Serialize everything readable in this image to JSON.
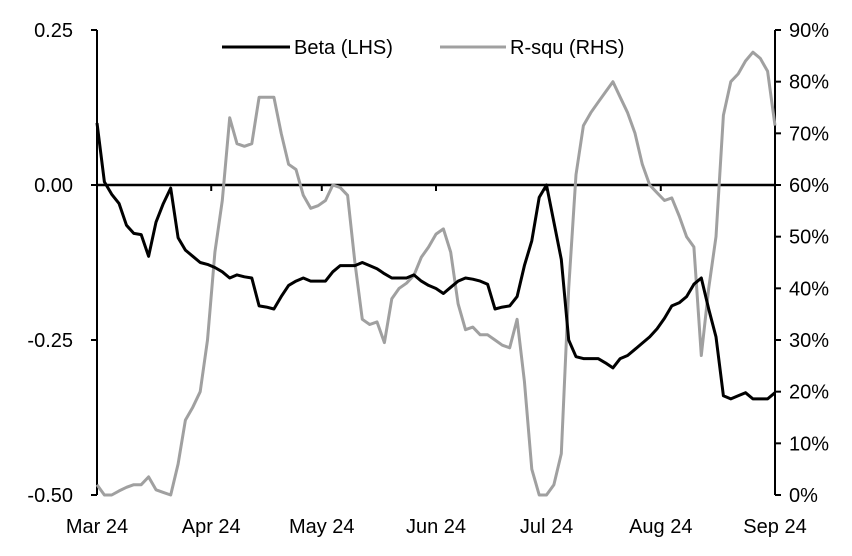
{
  "chart_data": {
    "type": "line",
    "title": "",
    "xlabel": "",
    "ylabel_left": "",
    "ylabel_right": "",
    "x_tick_labels": [
      "Mar 24",
      "Apr 24",
      "May 24",
      "Jun 24",
      "Jul 24",
      "Aug 24",
      "Sep 24"
    ],
    "x_tick_dates": [
      "2024-03-01",
      "2024-04-01",
      "2024-05-01",
      "2024-06-01",
      "2024-07-01",
      "2024-08-01",
      "2024-09-01"
    ],
    "x_range": [
      "2024-03-01",
      "2024-09-01"
    ],
    "y_left": {
      "range": [
        -0.5,
        0.25
      ],
      "ticks": [
        0.25,
        0.0,
        -0.25,
        -0.5
      ],
      "tick_labels": [
        "0.25",
        "0.00",
        "-0.25",
        "-0.50"
      ]
    },
    "y_right": {
      "range": [
        0,
        90
      ],
      "ticks": [
        0,
        10,
        20,
        30,
        40,
        50,
        60,
        70,
        80,
        90
      ],
      "tick_labels": [
        "0%",
        "10%",
        "20%",
        "30%",
        "40%",
        "50%",
        "60%",
        "70%",
        "80%",
        "90%"
      ]
    },
    "grid": false,
    "legend_position": "top-center",
    "x": [
      "2024-03-01",
      "2024-03-03",
      "2024-03-05",
      "2024-03-07",
      "2024-03-09",
      "2024-03-11",
      "2024-03-13",
      "2024-03-15",
      "2024-03-17",
      "2024-03-19",
      "2024-03-21",
      "2024-03-23",
      "2024-03-25",
      "2024-03-27",
      "2024-03-29",
      "2024-03-31",
      "2024-04-02",
      "2024-04-04",
      "2024-04-06",
      "2024-04-08",
      "2024-04-10",
      "2024-04-12",
      "2024-04-14",
      "2024-04-16",
      "2024-04-18",
      "2024-04-20",
      "2024-04-22",
      "2024-04-24",
      "2024-04-26",
      "2024-04-28",
      "2024-04-30",
      "2024-05-02",
      "2024-05-04",
      "2024-05-06",
      "2024-05-08",
      "2024-05-10",
      "2024-05-12",
      "2024-05-14",
      "2024-05-16",
      "2024-05-18",
      "2024-05-20",
      "2024-05-22",
      "2024-05-24",
      "2024-05-26",
      "2024-05-28",
      "2024-05-30",
      "2024-06-01",
      "2024-06-03",
      "2024-06-05",
      "2024-06-07",
      "2024-06-09",
      "2024-06-11",
      "2024-06-13",
      "2024-06-15",
      "2024-06-17",
      "2024-06-19",
      "2024-06-21",
      "2024-06-23",
      "2024-06-25",
      "2024-06-27",
      "2024-06-29",
      "2024-07-01",
      "2024-07-03",
      "2024-07-05",
      "2024-07-07",
      "2024-07-09",
      "2024-07-11",
      "2024-07-13",
      "2024-07-15",
      "2024-07-17",
      "2024-07-19",
      "2024-07-21",
      "2024-07-23",
      "2024-07-25",
      "2024-07-27",
      "2024-07-29",
      "2024-07-31",
      "2024-08-02",
      "2024-08-04",
      "2024-08-06",
      "2024-08-08",
      "2024-08-10",
      "2024-08-12",
      "2024-08-14",
      "2024-08-16",
      "2024-08-18",
      "2024-08-20",
      "2024-08-22",
      "2024-08-24",
      "2024-08-26",
      "2024-08-28",
      "2024-08-30",
      "2024-09-01"
    ],
    "series": [
      {
        "name": "Beta (LHS)",
        "axis": "left",
        "color": "#000000",
        "values": [
          0.1,
          0.005,
          -0.015,
          -0.03,
          -0.065,
          -0.078,
          -0.08,
          -0.115,
          -0.06,
          -0.03,
          -0.005,
          -0.085,
          -0.105,
          -0.115,
          -0.125,
          -0.128,
          -0.133,
          -0.14,
          -0.15,
          -0.145,
          -0.148,
          -0.15,
          -0.195,
          -0.197,
          -0.2,
          -0.18,
          -0.162,
          -0.155,
          -0.15,
          -0.155,
          -0.155,
          -0.155,
          -0.14,
          -0.13,
          -0.13,
          -0.13,
          -0.125,
          -0.13,
          -0.135,
          -0.143,
          -0.15,
          -0.15,
          -0.15,
          -0.145,
          -0.155,
          -0.162,
          -0.167,
          -0.175,
          -0.165,
          -0.155,
          -0.15,
          -0.152,
          -0.155,
          -0.16,
          -0.2,
          -0.197,
          -0.195,
          -0.18,
          -0.13,
          -0.09,
          -0.02,
          0.0,
          -0.06,
          -0.12,
          -0.25,
          -0.277,
          -0.28,
          -0.28,
          -0.28,
          -0.287,
          -0.295,
          -0.28,
          -0.275,
          -0.265,
          -0.255,
          -0.245,
          -0.232,
          -0.215,
          -0.195,
          -0.19,
          -0.18,
          -0.16,
          -0.15,
          -0.2,
          -0.245,
          -0.34,
          -0.345,
          -0.34,
          -0.335,
          -0.345,
          -0.345,
          -0.345,
          -0.335
        ]
      },
      {
        "name": "R-squ (RHS)",
        "axis": "right",
        "color": "#a0a0a0",
        "values": [
          2,
          0,
          0,
          0.8,
          1.5,
          2,
          2,
          3.5,
          1,
          0.5,
          0,
          6,
          14.5,
          17,
          20,
          30,
          47,
          57,
          73,
          68,
          67.5,
          68,
          77,
          77,
          77,
          70,
          64,
          63,
          58,
          55.5,
          56,
          57,
          60,
          59.5,
          58,
          45,
          34,
          33,
          33.5,
          29.5,
          38,
          40,
          41,
          42.5,
          46,
          48,
          50.5,
          51.5,
          47,
          37,
          32,
          32.5,
          31,
          31,
          30,
          29,
          28.5,
          34,
          22,
          5,
          0,
          0,
          2,
          8,
          40,
          62,
          71.5,
          74,
          76,
          78,
          80,
          77,
          74,
          70,
          64,
          60,
          58.5,
          57,
          57.5,
          54,
          50,
          48,
          27,
          40,
          50,
          73.5,
          80,
          81.5,
          84,
          85.7,
          84.5,
          82,
          71.5
        ]
      }
    ]
  }
}
